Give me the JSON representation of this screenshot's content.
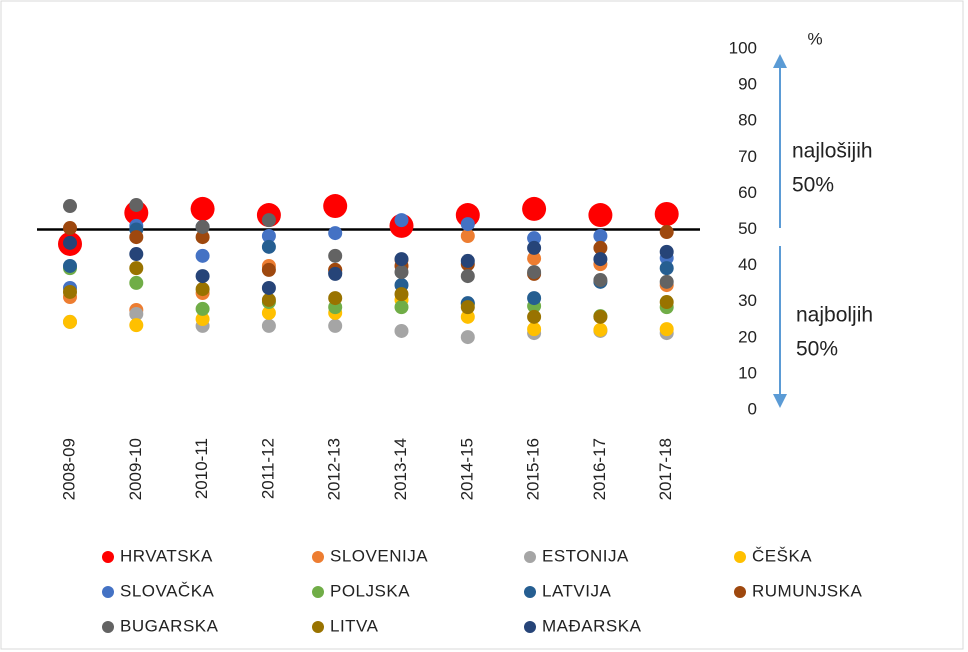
{
  "chart_data": {
    "type": "dot",
    "y_label": "%",
    "categories": [
      "2008-09",
      "2009-10",
      "2010-11",
      "2011-12",
      "2012-13",
      "2013-14",
      "2014-15",
      "2015-16",
      "2016-17",
      "2017-18"
    ],
    "ylim": [
      0,
      100
    ],
    "yticks": [
      0,
      10,
      20,
      30,
      40,
      50,
      60,
      70,
      80,
      90,
      100
    ],
    "reference_line": 50,
    "annotations": [
      "najlošijih",
      "50%",
      "najboljih",
      "50%"
    ],
    "series": [
      {
        "name": "HRVATSKA",
        "color": "#ff0000",
        "values": [
          46,
          54.6,
          55.7,
          54,
          56.5,
          51,
          54,
          55.7,
          54,
          54.3
        ]
      },
      {
        "name": "SLOVENIJA",
        "color": "#ed7d31",
        "values": [
          31.3,
          27.7,
          32.4,
          39.9,
          38.8,
          41.6,
          48.2,
          42,
          40.4,
          34.6
        ]
      },
      {
        "name": "ESTONIJA",
        "color": "#a5a5a5",
        "values": [
          24.4,
          26.6,
          23.3,
          23.3,
          23.3,
          21.9,
          20.2,
          21.3,
          21.9,
          21.3
        ]
      },
      {
        "name": "ČEŠKA",
        "color": "#ffc000",
        "values": [
          24.4,
          23.5,
          25.2,
          26.9,
          26.9,
          30.5,
          25.8,
          22.4,
          22.2,
          22.4
        ]
      },
      {
        "name": "SLOVAČKA",
        "color": "#4472c4",
        "values": [
          33.8,
          51,
          42.7,
          48.2,
          49,
          52.6,
          51.5,
          47.6,
          48.2,
          42.1
        ]
      },
      {
        "name": "POLJSKA",
        "color": "#70ad47",
        "values": [
          39.3,
          35.2,
          28,
          29.9,
          28.5,
          28.5,
          29.4,
          28.8,
          26,
          28.5
        ]
      },
      {
        "name": "LATVIJA",
        "color": "#255e91",
        "values": [
          39.9,
          50,
          50.7,
          45.2,
          38,
          34.6,
          29.6,
          31,
          35.5,
          39.3
        ]
      },
      {
        "name": "RUMUNJSKA",
        "color": "#9e480e",
        "values": [
          50.4,
          47.9,
          47.9,
          38.8,
          38.8,
          39.9,
          40.4,
          37.7,
          44.9,
          49.3
        ]
      },
      {
        "name": "BUGARSKA",
        "color": "#636363",
        "values": [
          56.5,
          56.8,
          50.7,
          52.6,
          42.7,
          38.2,
          37.1,
          38.2,
          36,
          35.5
        ]
      },
      {
        "name": "LITVA",
        "color": "#997300",
        "values": [
          32.7,
          39.3,
          33.5,
          30.5,
          31,
          32.1,
          28.5,
          25.8,
          25.8,
          29.9
        ]
      },
      {
        "name": "MAĐARSKA",
        "color": "#264478",
        "values": [
          46.3,
          43.2,
          37.1,
          33.8,
          37.7,
          41.8,
          41.3,
          44.9,
          41.8,
          43.8
        ]
      }
    ]
  }
}
